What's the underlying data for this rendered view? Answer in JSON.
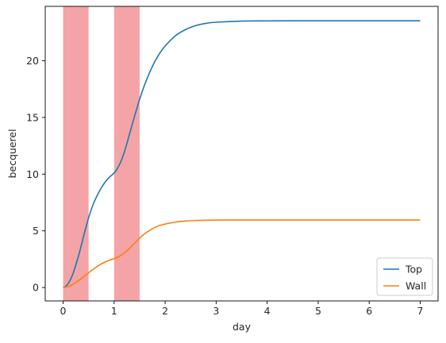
{
  "chart_data": {
    "type": "line",
    "title": "",
    "xlabel": "day",
    "ylabel": "becquerel",
    "xlim": [
      -0.35,
      7.35
    ],
    "ylim": [
      -1.18,
      24.8
    ],
    "xticks": [
      0,
      1,
      2,
      3,
      4,
      5,
      6,
      7
    ],
    "yticks": [
      0,
      5,
      10,
      15,
      20
    ],
    "grid": false,
    "legend": "lower-right",
    "shaded_intervals": [
      {
        "x0": 0.0,
        "x1": 0.5,
        "color": "#f4a4a6"
      },
      {
        "x0": 1.0,
        "x1": 1.5,
        "color": "#f4a4a6"
      }
    ],
    "series": [
      {
        "name": "Top",
        "color": "#1f77b4",
        "x": [
          0,
          0.05,
          0.1,
          0.15,
          0.2,
          0.25,
          0.3,
          0.35,
          0.4,
          0.45,
          0.5,
          0.55,
          0.6,
          0.65,
          0.7,
          0.75,
          0.8,
          0.85,
          0.9,
          0.95,
          1.0,
          1.05,
          1.1,
          1.15,
          1.2,
          1.25,
          1.3,
          1.35,
          1.4,
          1.45,
          1.5,
          1.6,
          1.7,
          1.8,
          1.9,
          2.0,
          2.2,
          2.4,
          2.6,
          2.8,
          3.0,
          3.5,
          4.0,
          5.0,
          6.0,
          7.0
        ],
        "y": [
          0,
          0.1,
          0.35,
          0.75,
          1.3,
          2.0,
          2.75,
          3.6,
          4.5,
          5.35,
          6.15,
          6.85,
          7.45,
          7.95,
          8.4,
          8.8,
          9.15,
          9.45,
          9.7,
          9.9,
          10.1,
          10.4,
          10.8,
          11.3,
          11.95,
          12.7,
          13.5,
          14.3,
          15.1,
          15.85,
          16.6,
          17.9,
          19.0,
          19.95,
          20.7,
          21.3,
          22.2,
          22.75,
          23.1,
          23.3,
          23.4,
          23.5,
          23.52,
          23.53,
          23.53,
          23.53
        ]
      },
      {
        "name": "Wall",
        "color": "#ff7f0e",
        "x": [
          0,
          0.1,
          0.2,
          0.3,
          0.4,
          0.5,
          0.6,
          0.7,
          0.8,
          0.9,
          1.0,
          1.1,
          1.2,
          1.3,
          1.4,
          1.5,
          1.6,
          1.7,
          1.8,
          1.9,
          2.0,
          2.2,
          2.4,
          2.6,
          2.8,
          3.0,
          3.5,
          4.0,
          5.0,
          6.0,
          7.0
        ],
        "y": [
          0,
          0.08,
          0.3,
          0.6,
          0.95,
          1.3,
          1.65,
          1.95,
          2.2,
          2.4,
          2.55,
          2.75,
          3.05,
          3.45,
          3.9,
          4.35,
          4.75,
          5.05,
          5.3,
          5.48,
          5.6,
          5.77,
          5.86,
          5.91,
          5.94,
          5.95,
          5.96,
          5.96,
          5.96,
          5.96,
          5.96
        ]
      }
    ]
  }
}
